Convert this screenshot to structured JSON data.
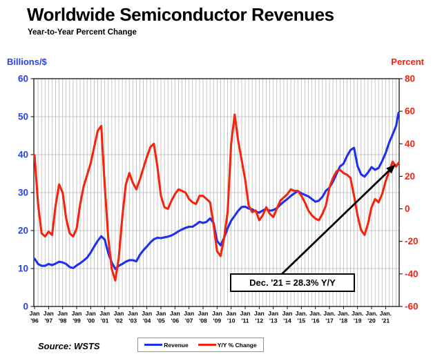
{
  "header": {
    "title": "Worldwide Semiconductor Revenues",
    "subtitle": "Year-to-Year Percent Change"
  },
  "axes": {
    "left": {
      "label": "Billions/$",
      "color": "#2441f2",
      "ticks": [
        0,
        10,
        20,
        30,
        40,
        50,
        60
      ],
      "range": [
        0,
        60
      ]
    },
    "right": {
      "label": "Percent",
      "color": "#fb1e0c",
      "ticks": [
        80,
        60,
        40,
        20,
        0,
        -20,
        -40,
        -60
      ],
      "range": [
        -60,
        80
      ]
    },
    "x_ticks": [
      {
        "m": "Jan",
        "y": "'96"
      },
      {
        "m": "Jan",
        "y": "'97"
      },
      {
        "m": "Jan",
        "y": "'98"
      },
      {
        "m": "Jan",
        "y": "'99"
      },
      {
        "m": "Jan",
        "y": "'00"
      },
      {
        "m": "Jan",
        "y": "'01"
      },
      {
        "m": "Jan",
        "y": "'02"
      },
      {
        "m": "Jan",
        "y": "'03"
      },
      {
        "m": "Jan",
        "y": "'04"
      },
      {
        "m": "Jan",
        "y": "'05"
      },
      {
        "m": "Jan",
        "y": "'06"
      },
      {
        "m": "Jan",
        "y": "'07"
      },
      {
        "m": "Jan",
        "y": "'08"
      },
      {
        "m": "Jan",
        "y": "'09"
      },
      {
        "m": "Jan",
        "y": "'10"
      },
      {
        "m": "Jan",
        "y": "'11"
      },
      {
        "m": "Jan",
        "y": "'12"
      },
      {
        "m": "Jan",
        "y": "'13"
      },
      {
        "m": "Jan",
        "y": "'14"
      },
      {
        "m": "Jan.",
        "y": "'15"
      },
      {
        "m": "Jan.",
        "y": "'16"
      },
      {
        "m": "Jan.",
        "y": "'17"
      },
      {
        "m": "Jan.",
        "y": "'18"
      },
      {
        "m": "Jan.",
        "y": "'19"
      },
      {
        "m": "Jan.",
        "y": "'20"
      },
      {
        "m": "Jan.",
        "y": "'21"
      }
    ]
  },
  "chart_data": {
    "type": "line",
    "title": "Worldwide Semiconductor Revenues",
    "subtitle": "Year-to-Year Percent Change",
    "x_start": "Jan 1996",
    "x_end": "Dec 2021",
    "sampling": "quarterly points (Jan, Apr, Jul, Oct) for 1996-2021 plus a final Dec 2021 point",
    "grid": {
      "vertical": "quarterly gridlines",
      "horizontal": "every 10 units of left scale"
    },
    "legend_position": "bottom-center",
    "left_axis_range": [
      0,
      60
    ],
    "right_axis_range": [
      -60,
      80
    ],
    "series": [
      {
        "name": "Revenue",
        "axis": "left",
        "units": "US$ billions per month",
        "color": "#1d2fef",
        "values": [
          12.6,
          11.2,
          10.7,
          10.7,
          11.2,
          10.9,
          11.3,
          11.8,
          11.6,
          11.2,
          10.4,
          10.1,
          10.8,
          11.4,
          12.1,
          12.9,
          14.2,
          15.8,
          17.3,
          18.5,
          17.6,
          14.0,
          11.6,
          9.9,
          10.7,
          11.2,
          11.8,
          12.2,
          12.2,
          11.9,
          13.6,
          14.8,
          15.8,
          16.9,
          17.7,
          18.1,
          18.0,
          18.2,
          18.4,
          18.7,
          19.2,
          19.8,
          20.3,
          20.7,
          21.0,
          21.0,
          21.6,
          22.3,
          22.0,
          22.3,
          23.2,
          22.0,
          17.3,
          16.1,
          18.1,
          20.6,
          22.6,
          23.9,
          25.2,
          26.2,
          26.3,
          25.8,
          25.6,
          25.0,
          24.7,
          25.3,
          25.7,
          25.2,
          25.4,
          25.9,
          26.8,
          27.6,
          28.3,
          29.1,
          29.8,
          30.4,
          29.8,
          29.4,
          29.0,
          28.3,
          27.6,
          27.9,
          28.9,
          30.5,
          31.3,
          32.9,
          34.9,
          36.9,
          37.6,
          39.6,
          41.2,
          41.8,
          37.0,
          34.8,
          34.2,
          35.3,
          36.7,
          36.0,
          36.5,
          38.3,
          40.4,
          43.1,
          45.3,
          47.6,
          51.0
        ]
      },
      {
        "name": "Y/Y % Change",
        "axis": "right",
        "units": "percent",
        "color": "#f3250f",
        "values": [
          33,
          3,
          -15,
          -17,
          -14,
          -16,
          2,
          15,
          10,
          -6,
          -15,
          -17,
          -12,
          3,
          14,
          21,
          28,
          38,
          48,
          51,
          14,
          -18,
          -37,
          -44,
          -30,
          -5,
          15,
          22,
          16,
          12,
          18,
          25,
          32,
          38,
          40,
          26,
          8,
          1,
          0,
          5,
          9,
          12,
          11,
          10,
          6,
          4,
          3,
          8,
          8,
          6,
          4,
          -10,
          -26,
          -29,
          -18,
          -2,
          40,
          58,
          42,
          30,
          18,
          2,
          -2,
          -1,
          -7,
          -4,
          1,
          -3,
          -5,
          0,
          5,
          7,
          9,
          12,
          11,
          11,
          8,
          4,
          -1,
          -4,
          -6,
          -7,
          -3,
          2,
          13,
          19,
          23,
          24,
          22,
          21,
          19,
          8,
          -4,
          -13,
          -16,
          -9,
          1,
          6,
          4,
          9,
          17,
          23,
          29,
          26,
          28.3
        ]
      }
    ]
  },
  "annotation": {
    "text": "Dec. '21 = 28.3% Y/Y",
    "points_to": "final Y/Y % Change value, Dec 2021 = 28.3%"
  },
  "legend": {
    "items": [
      {
        "label": "Revenue",
        "color": "#1d2fef"
      },
      {
        "label": "Y/Y % Change",
        "color": "#f3250f"
      }
    ]
  },
  "source": {
    "text": "Source: WSTS"
  }
}
